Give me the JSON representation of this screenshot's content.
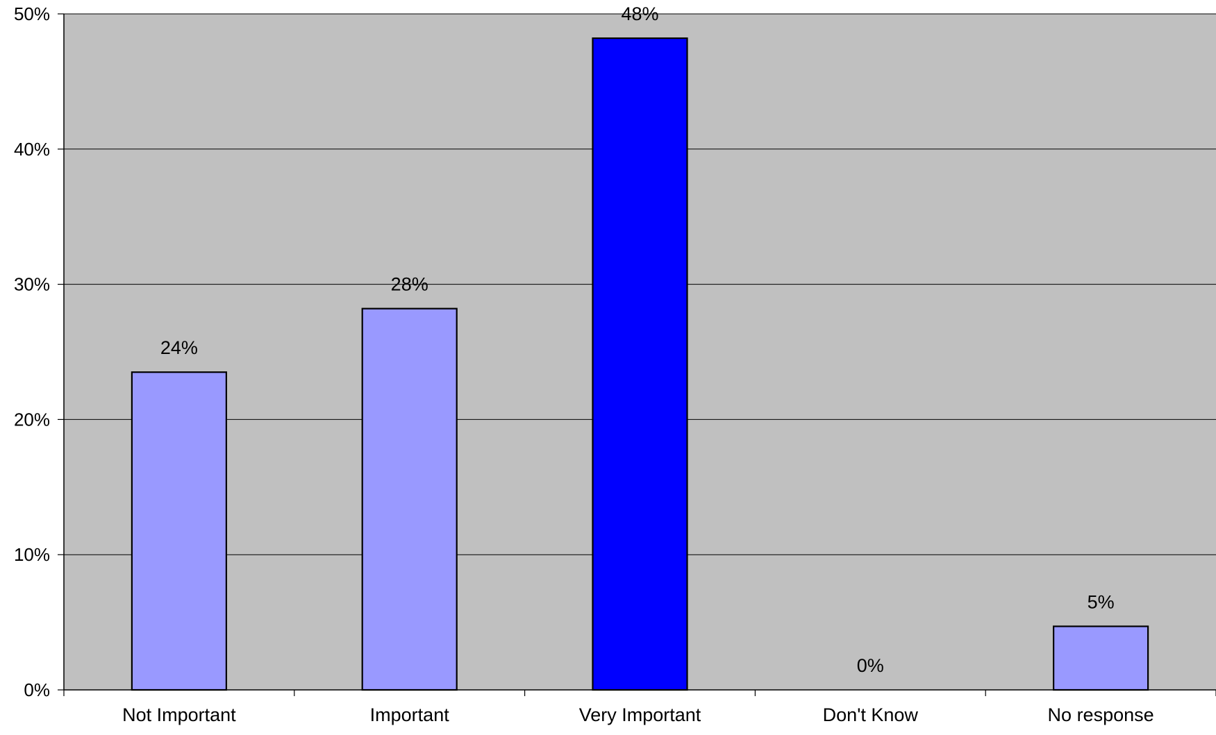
{
  "chart_data": {
    "type": "bar",
    "categories": [
      "Not Important",
      "Important",
      "Very Important",
      "Don't Know",
      "No response"
    ],
    "values": [
      23.5,
      28.2,
      48.2,
      0,
      4.7
    ],
    "data_labels": [
      "24%",
      "28%",
      "48%",
      "0%",
      "5%"
    ],
    "bar_colors": [
      "#9999ff",
      "#9999ff",
      "#0000ff",
      "#9999ff",
      "#9999ff"
    ],
    "ylim": [
      0,
      50
    ],
    "yticks": [
      0,
      10,
      20,
      30,
      40,
      50
    ],
    "ytick_labels": [
      "0%",
      "10%",
      "20%",
      "30%",
      "40%",
      "50%"
    ],
    "grid": true,
    "title": "",
    "xlabel": "",
    "ylabel": "",
    "plot_background": "#c0c0c0",
    "gridline_color": "#000000",
    "bar_outline_color": "#000000"
  }
}
